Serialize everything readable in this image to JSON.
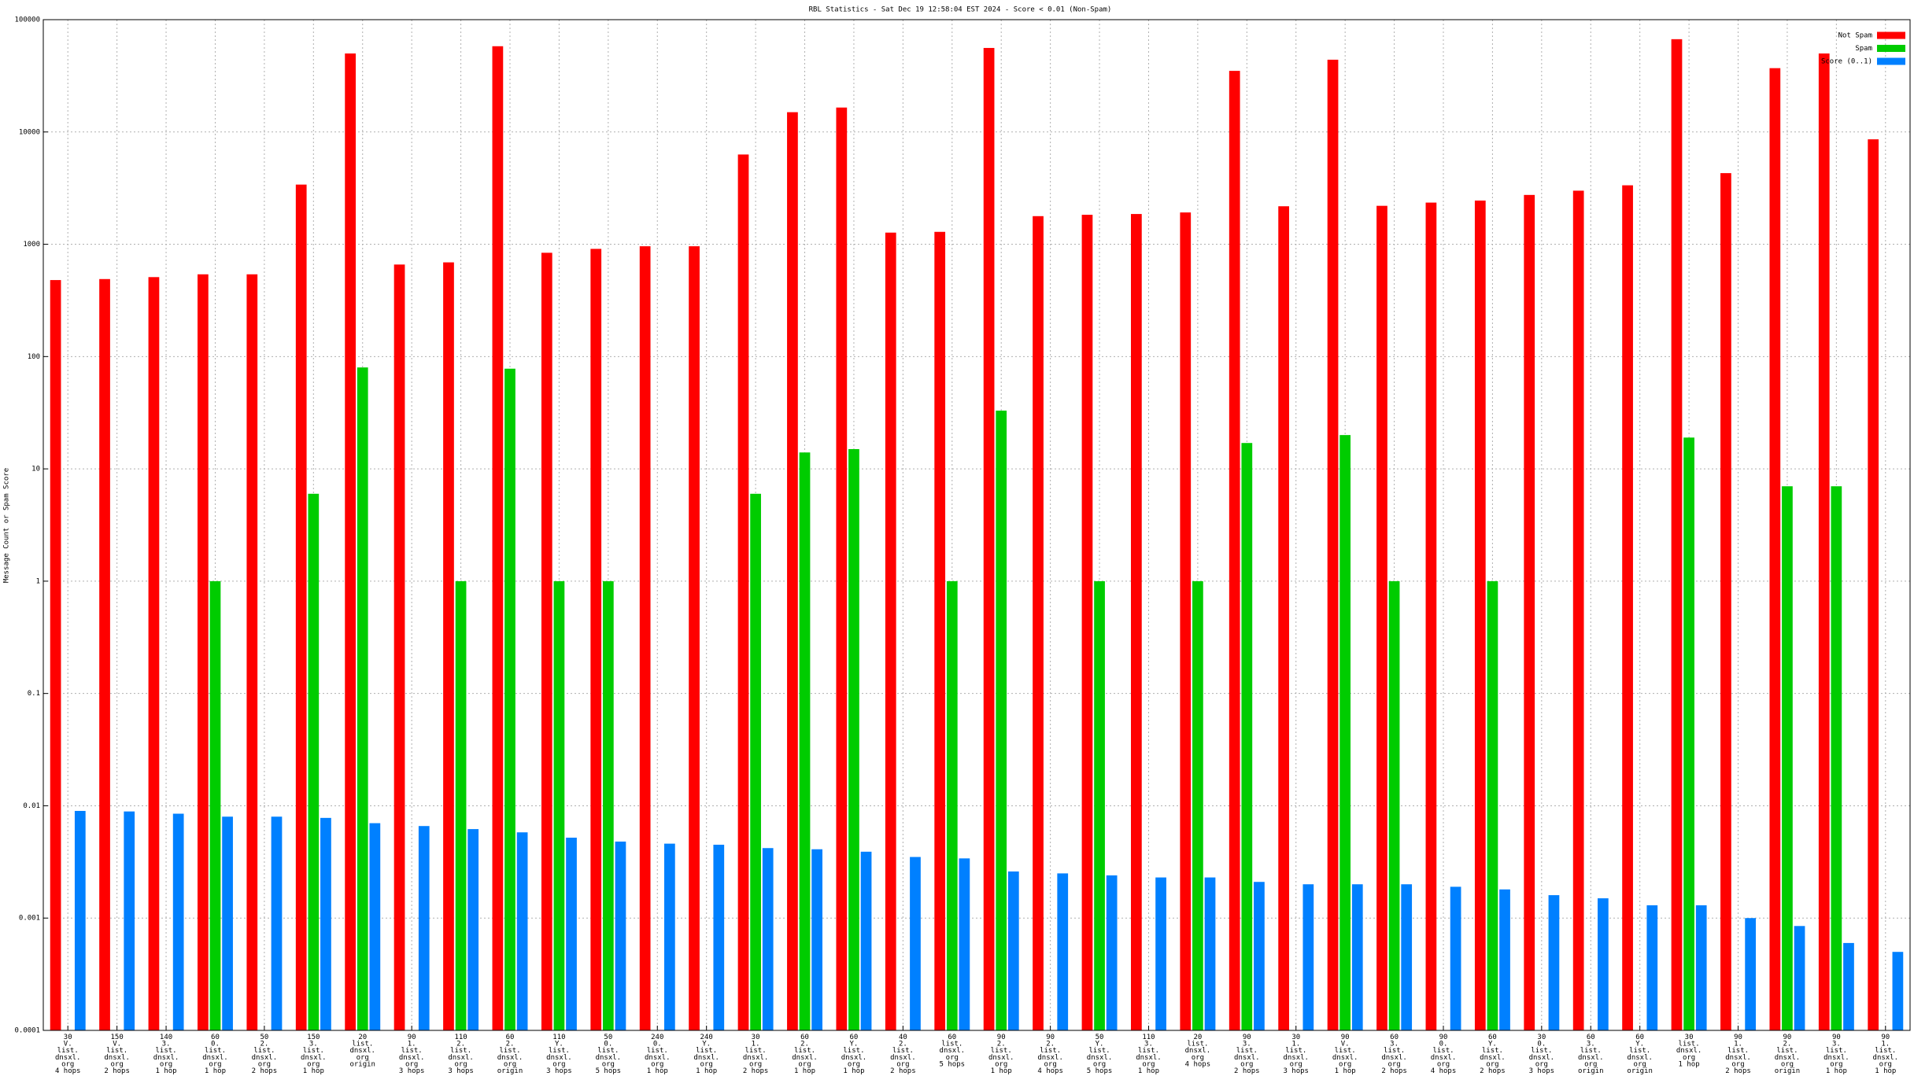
{
  "chart_data": {
    "type": "bar",
    "title": "RBL Statistics - Sat Dec 19 12:58:04 EST 2024 - Score < 0.01 (Non-Spam)",
    "y_label": "Message Count or Spam Score",
    "log_scale": true,
    "grid": true,
    "legend_position": "top-right",
    "ylim": [
      0.0001,
      100000
    ],
    "yticks": [
      0.0001,
      0.001,
      0.01,
      0.1,
      1,
      10,
      100,
      1000,
      10000,
      100000
    ],
    "categories": [
      [
        "30",
        "V.",
        "list.",
        "dnsxl.",
        "org",
        "4 hops"
      ],
      [
        "150",
        "V.",
        "list.",
        "dnsxl.",
        "org",
        "2 hops"
      ],
      [
        "140",
        "3.",
        "list.",
        "dnsxl.",
        "org",
        "1 hop"
      ],
      [
        "60",
        "0.",
        "list.",
        "dnsxl.",
        "org",
        "1 hop"
      ],
      [
        "50",
        "2.",
        "list.",
        "dnsxl.",
        "org",
        "2 hops"
      ],
      [
        "150",
        "3.",
        "list.",
        "dnsxl.",
        "org",
        "1 hop"
      ],
      [
        "20",
        "list.",
        "dnsxl.",
        "org",
        "origin"
      ],
      [
        "90",
        "1.",
        "list.",
        "dnsxl.",
        "org",
        "3 hops"
      ],
      [
        "110",
        "2.",
        "list.",
        "dnsxl.",
        "org",
        "3 hops"
      ],
      [
        "60",
        "2.",
        "list.",
        "dnsxl.",
        "org",
        "origin"
      ],
      [
        "110",
        "Y.",
        "list.",
        "dnsxl.",
        "org",
        "3 hops"
      ],
      [
        "50",
        "0.",
        "list.",
        "dnsxl.",
        "org",
        "5 hops"
      ],
      [
        "240",
        "0.",
        "list.",
        "dnsxl.",
        "org",
        "1 hop"
      ],
      [
        "240",
        "Y.",
        "list.",
        "dnsxl.",
        "org",
        "1 hop"
      ],
      [
        "30",
        "1.",
        "list.",
        "dnsxl.",
        "org",
        "2 hops"
      ],
      [
        "60",
        "2.",
        "list.",
        "dnsxl.",
        "org",
        "1 hop"
      ],
      [
        "60",
        "Y.",
        "list.",
        "dnsxl.",
        "org",
        "1 hop"
      ],
      [
        "40",
        "2.",
        "list.",
        "dnsxl.",
        "org",
        "2 hops"
      ],
      [
        "60",
        "list.",
        "dnsxl.",
        "org",
        "5 hops"
      ],
      [
        "90",
        "2.",
        "list.",
        "dnsxl.",
        "org",
        "1 hop"
      ],
      [
        "90",
        "2.",
        "list.",
        "dnsxl.",
        "org",
        "4 hops"
      ],
      [
        "50",
        "Y.",
        "list.",
        "dnsxl.",
        "org",
        "5 hops"
      ],
      [
        "110",
        "3.",
        "list.",
        "dnsxl.",
        "org",
        "1 hop"
      ],
      [
        "20",
        "list.",
        "dnsxl.",
        "org",
        "4 hops"
      ],
      [
        "90",
        "3.",
        "list.",
        "dnsxl.",
        "org",
        "2 hops"
      ],
      [
        "30",
        "1.",
        "list.",
        "dnsxl.",
        "org",
        "3 hops"
      ],
      [
        "90",
        "V.",
        "list.",
        "dnsxl.",
        "org",
        "1 hop"
      ],
      [
        "60",
        "3.",
        "list.",
        "dnsxl.",
        "org",
        "2 hops"
      ],
      [
        "90",
        "0.",
        "list.",
        "dnsxl.",
        "org",
        "4 hops"
      ],
      [
        "60",
        "Y.",
        "list.",
        "dnsxl.",
        "org",
        "2 hops"
      ],
      [
        "30",
        "0.",
        "list.",
        "dnsxl.",
        "org",
        "3 hops"
      ],
      [
        "60",
        "3.",
        "list.",
        "dnsxl.",
        "org",
        "origin"
      ],
      [
        "60",
        "Y.",
        "list.",
        "dnsxl.",
        "org",
        "origin"
      ],
      [
        "30",
        "list.",
        "dnsxl.",
        "org",
        "1 hop"
      ],
      [
        "90",
        "1.",
        "list.",
        "dnsxl.",
        "org",
        "2 hops"
      ],
      [
        "90",
        "2.",
        "list.",
        "dnsxl.",
        "org",
        "origin"
      ],
      [
        "90",
        "3.",
        "list.",
        "dnsxl.",
        "org",
        "1 hop"
      ],
      [
        "90",
        "1.",
        "list.",
        "dnsxl.",
        "org",
        "1 hop"
      ]
    ],
    "series": [
      {
        "name": "Not Spam",
        "color": "#ff0000",
        "values": [
          480,
          490,
          510,
          540,
          540,
          3400,
          50000,
          660,
          690,
          58000,
          840,
          910,
          960,
          960,
          6300,
          15000,
          16500,
          1270,
          1290,
          56000,
          1780,
          1830,
          1860,
          1920,
          35000,
          2180,
          44000,
          2200,
          2350,
          2450,
          2750,
          3000,
          3350,
          67000,
          4300,
          37000,
          50000,
          8600
        ]
      },
      {
        "name": "Spam",
        "color": "#00cc00",
        "values": [
          null,
          null,
          null,
          1,
          null,
          6,
          80,
          null,
          1,
          78,
          1,
          1,
          null,
          null,
          6,
          14,
          15,
          null,
          1,
          33,
          null,
          1,
          null,
          1,
          17,
          null,
          20,
          1,
          null,
          1,
          null,
          null,
          null,
          19,
          null,
          7,
          7,
          null
        ]
      },
      {
        "name": "Score (0..1)",
        "color": "#0080ff",
        "values": [
          0.009,
          0.0089,
          0.0085,
          0.008,
          0.008,
          0.0078,
          0.007,
          0.0066,
          0.0062,
          0.0058,
          0.0052,
          0.0048,
          0.0046,
          0.0045,
          0.0042,
          0.0041,
          0.0039,
          0.0035,
          0.0034,
          0.0026,
          0.0025,
          0.0024,
          0.0023,
          0.0023,
          0.0021,
          0.002,
          0.002,
          0.002,
          0.0019,
          0.0018,
          0.0016,
          0.0015,
          0.0013,
          0.0013,
          0.001,
          0.00085,
          0.0006,
          0.0005
        ]
      }
    ]
  }
}
